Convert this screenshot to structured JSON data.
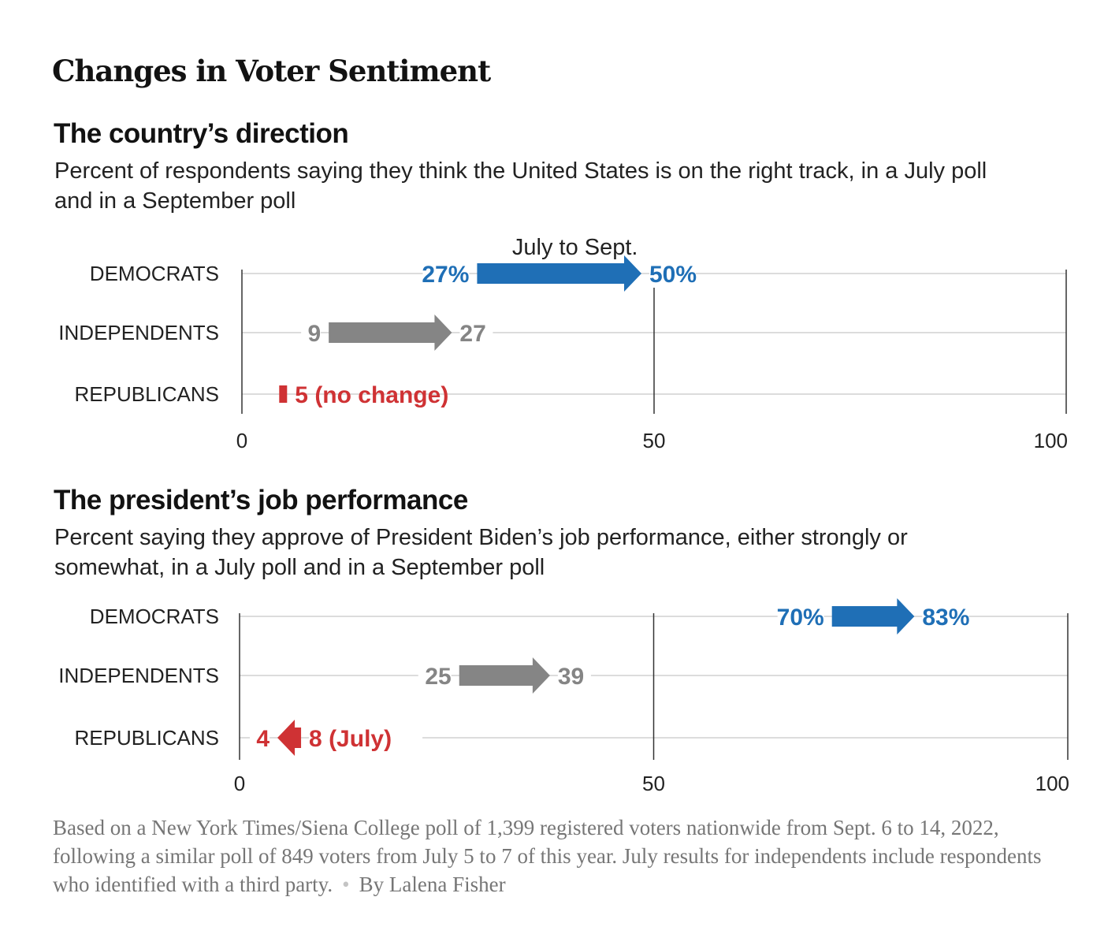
{
  "title": "Changes in Voter Sentiment",
  "colors": {
    "democrats": "#1f6fb6",
    "independents": "#858585",
    "republicans": "#cf3234",
    "gridline": "#dcdcdc",
    "axis": "#333333"
  },
  "chart_data": [
    {
      "type": "arrow-range",
      "title": "The country’s direction",
      "subtitle": "Percent of respondents saying they think the United States is on the right track, in a July poll and in a September poll",
      "annotation": "July to Sept.",
      "xlim": [
        0,
        100
      ],
      "ticks": [
        "0",
        "50",
        "100"
      ],
      "series": [
        {
          "name": "DEMOCRATS",
          "july": 27,
          "sept": 50,
          "label_july": "27%",
          "label_sept": "50%",
          "color_key": "democrats"
        },
        {
          "name": "INDEPENDENTS",
          "july": 9,
          "sept": 27,
          "label_july": "9",
          "label_sept": "27",
          "color_key": "independents"
        },
        {
          "name": "REPUBLICANS",
          "july": 5,
          "sept": 5,
          "label_july": "",
          "label_sept": "5 (no change)",
          "color_key": "republicans"
        }
      ]
    },
    {
      "type": "arrow-range",
      "title": "The president’s job performance",
      "subtitle": "Percent saying they approve of President Biden’s job performance, either strongly or somewhat, in a July poll and in a September poll",
      "annotation": "",
      "xlim": [
        0,
        100
      ],
      "ticks": [
        "0",
        "50",
        "100"
      ],
      "series": [
        {
          "name": "DEMOCRATS",
          "july": 70,
          "sept": 83,
          "label_july": "70%",
          "label_sept": "83%",
          "color_key": "democrats"
        },
        {
          "name": "INDEPENDENTS",
          "july": 25,
          "sept": 39,
          "label_july": "25",
          "label_sept": "39",
          "color_key": "independents"
        },
        {
          "name": "REPUBLICANS",
          "july": 8,
          "sept": 4,
          "label_july": "8 (July)",
          "label_sept": "4",
          "color_key": "republicans"
        }
      ]
    }
  ],
  "footnote": {
    "text": "Based on a New York Times/Siena College poll of 1,399 registered voters nationwide from Sept. 6 to 14, 2022, following a similar poll of 849 voters from July 5 to 7 of this year. July results for independents include respondents who identified with a third party.",
    "byline": "By Lalena Fisher"
  }
}
